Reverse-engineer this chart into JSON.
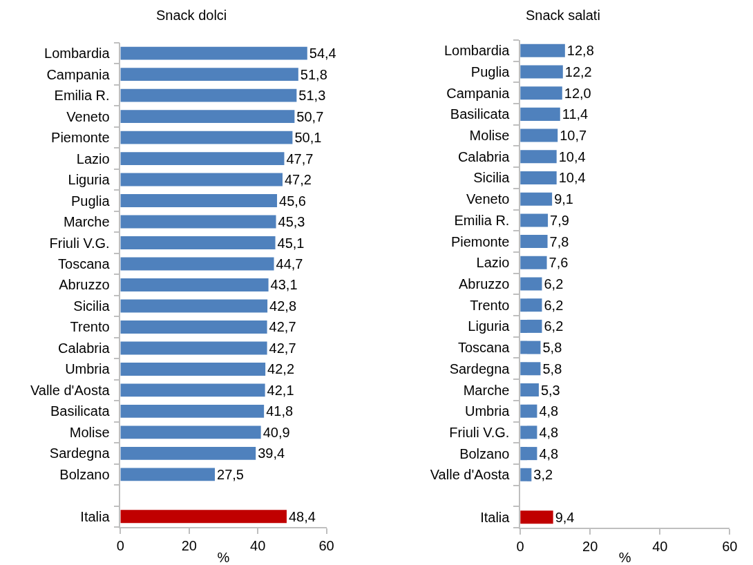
{
  "chart_data": [
    {
      "type": "bar",
      "orientation": "horizontal",
      "title": "Snack dolci",
      "xlabel": "%",
      "categories": [
        "Lombardia",
        "Campania",
        "Emilia R.",
        "Veneto",
        "Piemonte",
        "Lazio",
        "Liguria",
        "Puglia",
        "Marche",
        "Friuli V.G.",
        "Toscana",
        "Abruzzo",
        "Sicilia",
        "Trento",
        "Calabria",
        "Umbria",
        "Valle d'Aosta",
        "Basilicata",
        "Molise",
        "Sardegna",
        "Bolzano",
        null,
        "Italia"
      ],
      "values": [
        54.4,
        51.8,
        51.3,
        50.7,
        50.1,
        47.7,
        47.2,
        45.6,
        45.3,
        45.1,
        44.7,
        43.1,
        42.8,
        42.7,
        42.7,
        42.2,
        42.1,
        41.8,
        40.9,
        39.4,
        27.5,
        null,
        48.4
      ],
      "value_labels": [
        "54,4",
        "51,8",
        "51,3",
        "50,7",
        "50,1",
        "47,7",
        "47,2",
        "45,6",
        "45,3",
        "45,1",
        "44,7",
        "43,1",
        "42,8",
        "42,7",
        "42,7",
        "42,2",
        "42,1",
        "41,8",
        "40,9",
        "39,4",
        "27,5",
        null,
        "48,4"
      ],
      "colors": [
        "#4f81bd",
        "#4f81bd",
        "#4f81bd",
        "#4f81bd",
        "#4f81bd",
        "#4f81bd",
        "#4f81bd",
        "#4f81bd",
        "#4f81bd",
        "#4f81bd",
        "#4f81bd",
        "#4f81bd",
        "#4f81bd",
        "#4f81bd",
        "#4f81bd",
        "#4f81bd",
        "#4f81bd",
        "#4f81bd",
        "#4f81bd",
        "#4f81bd",
        "#4f81bd",
        "#4f81bd",
        "#c00000"
      ],
      "xlim": [
        0,
        60
      ],
      "xticks": [
        0,
        20,
        40,
        60
      ]
    },
    {
      "type": "bar",
      "orientation": "horizontal",
      "title": "Snack salati",
      "xlabel": "%",
      "categories": [
        "Lombardia",
        "Puglia",
        "Campania",
        "Basilicata",
        "Molise",
        "Calabria",
        "Sicilia",
        "Veneto",
        "Emilia R.",
        "Piemonte",
        "Lazio",
        "Abruzzo",
        "Trento",
        "Liguria",
        "Toscana",
        "Sardegna",
        "Marche",
        "Umbria",
        "Friuli V.G.",
        "Bolzano",
        "Valle d'Aosta",
        null,
        "Italia"
      ],
      "values": [
        12.8,
        12.2,
        12.0,
        11.4,
        10.7,
        10.4,
        10.4,
        9.1,
        7.9,
        7.8,
        7.6,
        6.2,
        6.2,
        6.2,
        5.8,
        5.8,
        5.3,
        4.8,
        4.8,
        4.8,
        3.2,
        null,
        9.4
      ],
      "value_labels": [
        "12,8",
        "12,2",
        "12,0",
        "11,4",
        "10,7",
        "10,4",
        "10,4",
        "9,1",
        "7,9",
        "7,8",
        "7,6",
        "6,2",
        "6,2",
        "6,2",
        "5,8",
        "5,8",
        "5,3",
        "4,8",
        "4,8",
        "4,8",
        "3,2",
        null,
        "9,4"
      ],
      "colors": [
        "#4f81bd",
        "#4f81bd",
        "#4f81bd",
        "#4f81bd",
        "#4f81bd",
        "#4f81bd",
        "#4f81bd",
        "#4f81bd",
        "#4f81bd",
        "#4f81bd",
        "#4f81bd",
        "#4f81bd",
        "#4f81bd",
        "#4f81bd",
        "#4f81bd",
        "#4f81bd",
        "#4f81bd",
        "#4f81bd",
        "#4f81bd",
        "#4f81bd",
        "#4f81bd",
        "#4f81bd",
        "#c00000"
      ],
      "xlim": [
        0,
        60
      ],
      "xticks": [
        0,
        20,
        40,
        60
      ]
    }
  ]
}
